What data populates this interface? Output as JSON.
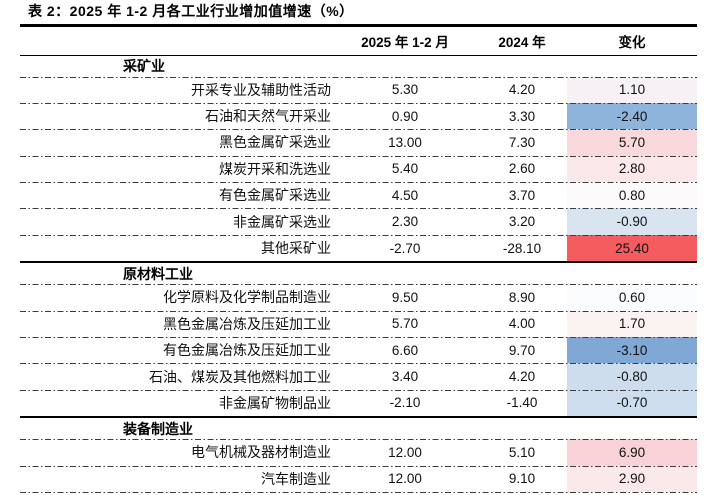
{
  "title": "表 2：2025 年 1-2 月各工业行业增加值增速（%）",
  "header": {
    "col_industry": "",
    "col_2025": "2025 年 1-2 月",
    "col_2024": "2024 年",
    "col_change": "变化"
  },
  "colors": {
    "rule": "#000000",
    "strong_red": "#f45c60",
    "strong_blue": "#7fa8d4"
  },
  "table": {
    "sections": [
      {
        "name": "采矿业",
        "rows": [
          {
            "industry": "开采专业及辅助性活动",
            "v2025": "5.30",
            "v2024": "4.20",
            "change": "1.10",
            "change_bg": "#f5f1f5"
          },
          {
            "industry": "石油和天然气开采业",
            "v2025": "0.90",
            "v2024": "3.30",
            "change": "-2.40",
            "change_bg": "#8fb4dc"
          },
          {
            "industry": "黑色金属矿采选业",
            "v2025": "13.00",
            "v2024": "7.30",
            "change": "5.70",
            "change_bg": "#f9d9dc"
          },
          {
            "industry": "煤炭开采和洗选业",
            "v2025": "5.40",
            "v2024": "2.60",
            "change": "2.80",
            "change_bg": "#fbe8ea"
          },
          {
            "industry": "有色金属矿采选业",
            "v2025": "4.50",
            "v2024": "3.70",
            "change": "0.80",
            "change_bg": "#fdfafb"
          },
          {
            "industry": "非金属矿采选业",
            "v2025": "2.30",
            "v2024": "3.20",
            "change": "-0.90",
            "change_bg": "#d9e4f1"
          },
          {
            "industry": "其他采矿业",
            "v2025": "-2.70",
            "v2024": "-28.10",
            "change": "25.40",
            "change_bg": "#f45c60"
          }
        ]
      },
      {
        "name": "原材料工业",
        "rows": [
          {
            "industry": "化学原料及化学制品制造业",
            "v2025": "9.50",
            "v2024": "8.90",
            "change": "0.60",
            "change_bg": "#fbfcfe"
          },
          {
            "industry": "黑色金属冶炼及压延加工业",
            "v2025": "5.70",
            "v2024": "4.00",
            "change": "1.70",
            "change_bg": "#fbf3f2"
          },
          {
            "industry": "有色金属冶炼及压延加工业",
            "v2025": "6.60",
            "v2024": "9.70",
            "change": "-3.10",
            "change_bg": "#7fa8d4"
          },
          {
            "industry": "石油、煤炭及其他燃料加工业",
            "v2025": "3.40",
            "v2024": "4.20",
            "change": "-0.80",
            "change_bg": "#cdddee"
          },
          {
            "industry": "非金属矿物制品业",
            "v2025": "-2.10",
            "v2024": "-1.40",
            "change": "-0.70",
            "change_bg": "#cfdeef"
          }
        ]
      },
      {
        "name": "装备制造业",
        "rows": [
          {
            "industry": "电气机械及器材制造业",
            "v2025": "12.00",
            "v2024": "5.10",
            "change": "6.90",
            "change_bg": "#f8d2d6"
          },
          {
            "industry": "汽车制造业",
            "v2025": "12.00",
            "v2024": "9.10",
            "change": "2.90",
            "change_bg": "#fbe8eb"
          }
        ]
      }
    ]
  }
}
